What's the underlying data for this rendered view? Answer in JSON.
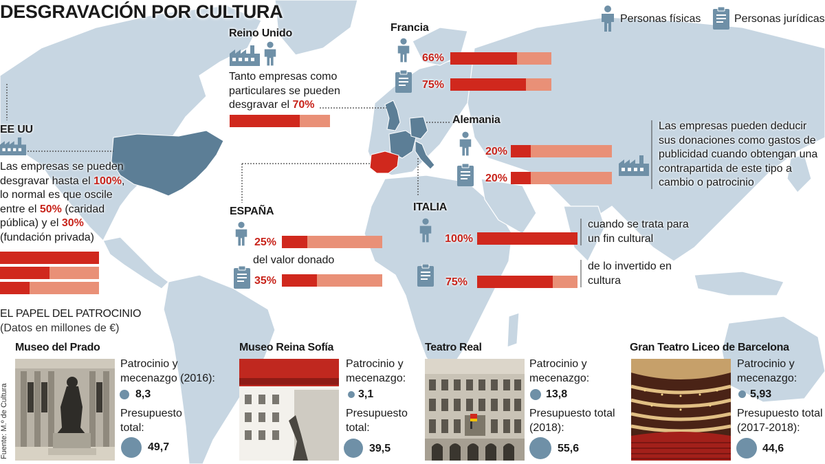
{
  "title": "DESGRAVACIÓN POR CULTURA",
  "legend": {
    "person_label": "Personas físicas",
    "company_label": "Personas jurídicas"
  },
  "colors": {
    "ocean": "#ffffff",
    "land": "#c7d6e2",
    "highlight_land": "#5c7e96",
    "spain": "#d0281d",
    "bar_strong": "#d0281d",
    "bar_light": "#e99077",
    "icon": "#6f90a7"
  },
  "countries": {
    "reino_unido": {
      "name": "Reino Unido",
      "text": "Tanto empresas como particulares se pueden desgravar el",
      "pct_label": "70%",
      "pct": 70
    },
    "francia": {
      "name": "Francia",
      "personas_label": "66%",
      "personas": 66,
      "empresas_label": "75%",
      "empresas": 75
    },
    "alemania": {
      "name": "Alemania",
      "personas_label": "20%",
      "personas": 20,
      "empresas_label": "20%",
      "empresas": 20,
      "note": "Las empresas pueden deducir sus donaciones como gastos de publicidad cuando obtengan una contrapartida de este tipo a cambio o patrocinio"
    },
    "eeuu": {
      "name": "EE UU",
      "text_a": "Las empresas se pueden desgravar hasta el",
      "bold_a": "100%",
      "text_b": ", lo normal es que oscile entre el",
      "bold_b": "50%",
      "text_c": "(caridad pública) y el",
      "bold_c": "30%",
      "text_d": "(fundación privada)",
      "bars": [
        100,
        50,
        30
      ]
    },
    "espana": {
      "name": "ESPAÑA",
      "personas_label": "25%",
      "personas": 25,
      "mid_text": "del valor donado",
      "empresas_label": "35%",
      "empresas": 35
    },
    "italia": {
      "name": "ITALIA",
      "personas_label": "100%",
      "personas": 100,
      "personas_note": "cuando se trata para un fin cultural",
      "empresas_label": "75%",
      "empresas": 75,
      "empresas_note": "de lo invertido en cultura"
    }
  },
  "patrocinio": {
    "title": "EL PAPEL DEL PATROCINIO",
    "subtitle": "(Datos en millones de €)",
    "source": "Fuente: M.º de Cultura",
    "institutions": [
      {
        "name": "Museo del Prado",
        "label_a": "Patrocinio y mecenazgo (2016):",
        "value_a": "8,3",
        "value_a_num": 8.3,
        "label_b": "Presupuesto total:",
        "value_b": "49,7",
        "value_b_num": 49.7
      },
      {
        "name": "Museo Reina Sofía",
        "label_a": "Patrocinio y mecenazgo:",
        "value_a": "3,1",
        "value_a_num": 3.1,
        "label_b": "Presupuesto total:",
        "value_b": "39,5",
        "value_b_num": 39.5
      },
      {
        "name": "Teatro Real",
        "label_a": "Patrocinio y mecenazgo:",
        "value_a": "13,8",
        "value_a_num": 13.8,
        "label_b": "Presupuesto total (2018):",
        "value_b": "55,6",
        "value_b_num": 55.6
      },
      {
        "name": "Gran Teatro Liceo de Barcelona",
        "label_a": "Patrocinio y mecenazgo:",
        "value_a": "5,93",
        "value_a_num": 5.93,
        "label_b": "Presupuesto total (2017-2018):",
        "value_b": "44,6",
        "value_b_num": 44.6
      }
    ]
  }
}
